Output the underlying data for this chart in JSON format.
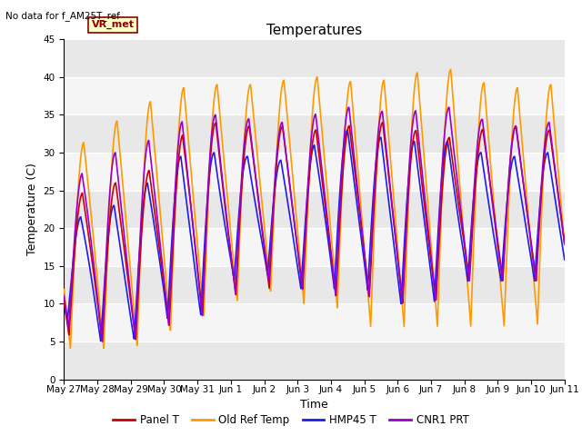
{
  "title": "Temperatures",
  "xlabel": "Time",
  "ylabel": "Temperature (C)",
  "note": "No data for f_AM25T_ref",
  "annotation": "VR_met",
  "ylim": [
    0,
    45
  ],
  "n_days": 15,
  "series": {
    "Panel T": {
      "color": "#cc0000",
      "lw": 1.2
    },
    "Old Ref Temp": {
      "color": "#ff9900",
      "lw": 1.2
    },
    "HMP45 T": {
      "color": "#1c1cee",
      "lw": 1.2
    },
    "CNR1 PRT": {
      "color": "#9900cc",
      "lw": 1.2
    }
  },
  "xtick_labels": [
    "May 27",
    "May 28",
    "May 29",
    "May 30",
    "May 31",
    "Jun 1",
    "Jun 2",
    "Jun 3",
    "Jun 4",
    "Jun 5",
    "Jun 6",
    "Jun 7",
    "Jun 8",
    "Jun 9",
    "Jun 10",
    "Jun 11"
  ],
  "xtick_positions": [
    0,
    1,
    2,
    3,
    4,
    5,
    6,
    7,
    8,
    9,
    10,
    11,
    12,
    13,
    14,
    15
  ],
  "bg_color": "#e8e8e8",
  "stripe_color": "#f5f5f5",
  "fig_bg": "#ffffff",
  "title_fontsize": 11,
  "label_fontsize": 9,
  "tick_fontsize": 7.5,
  "legend_fontsize": 8.5
}
